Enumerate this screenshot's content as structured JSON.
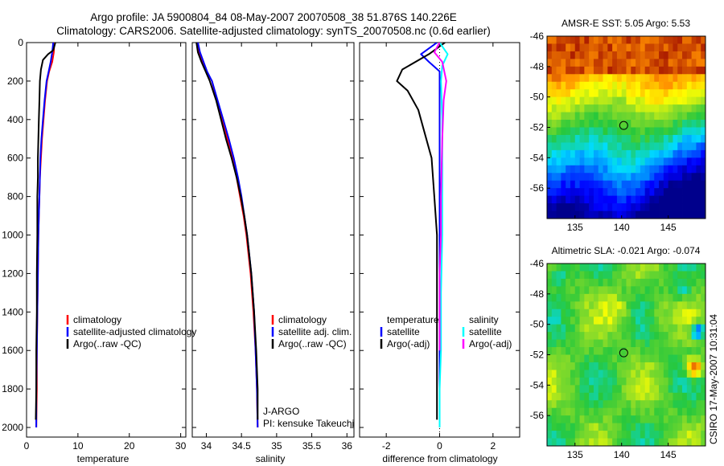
{
  "header": {
    "line1": "Argo profile: JA 5900804_84 08-May-2007 20070508_38 51.876S 140.226E",
    "line2": "Climatology: CARS2006. Satellite-adjusted climatology: synTS_20070508.nc (0.6d earlier)"
  },
  "side_stamp": "CSIRO 17-May-2007 10:31:04",
  "colors": {
    "climatology": "#ff0000",
    "satellite": "#0000ff",
    "argo": "#000000",
    "satellite_salinity": "#00ffff",
    "argo_salinity_adj": "#ff00ff"
  },
  "chart_data": [
    {
      "type": "line",
      "name": "temperature-profile",
      "xlabel": "temperature",
      "xlim": [
        0,
        31
      ],
      "ylim": [
        2050,
        0
      ],
      "x_ticks": [
        0,
        10,
        20,
        30
      ],
      "y_ticks": [
        0,
        200,
        400,
        600,
        800,
        1000,
        1200,
        1400,
        1600,
        1800,
        2000
      ],
      "legend": [
        "climatology",
        "satellite-adjusted climatology",
        "Argo(..raw -QC)"
      ],
      "series": [
        {
          "name": "climatology",
          "color": "#ff0000",
          "points": [
            [
              5.4,
              0
            ],
            [
              5.3,
              50
            ],
            [
              5.0,
              100
            ],
            [
              4.4,
              150
            ],
            [
              4.0,
              200
            ],
            [
              3.6,
              300
            ],
            [
              3.3,
              400
            ],
            [
              3.0,
              500
            ],
            [
              2.8,
              600
            ],
            [
              2.6,
              700
            ],
            [
              2.5,
              800
            ],
            [
              2.4,
              900
            ],
            [
              2.3,
              1000
            ],
            [
              2.2,
              1200
            ],
            [
              2.1,
              1400
            ],
            [
              2.0,
              1600
            ],
            [
              2.0,
              1800
            ],
            [
              1.9,
              2000
            ]
          ]
        },
        {
          "name": "satellite-adjusted climatology",
          "color": "#0000ff",
          "points": [
            [
              5.2,
              0
            ],
            [
              5.0,
              50
            ],
            [
              4.7,
              100
            ],
            [
              4.3,
              150
            ],
            [
              3.9,
              200
            ],
            [
              3.5,
              300
            ],
            [
              3.2,
              400
            ],
            [
              2.9,
              500
            ],
            [
              2.7,
              600
            ],
            [
              2.6,
              700
            ],
            [
              2.5,
              800
            ],
            [
              2.4,
              900
            ],
            [
              2.3,
              1000
            ],
            [
              2.2,
              1200
            ],
            [
              2.1,
              1400
            ],
            [
              2.0,
              1600
            ],
            [
              1.9,
              1800
            ],
            [
              1.9,
              2000
            ]
          ]
        },
        {
          "name": "Argo(..raw -QC)",
          "color": "#000000",
          "points": [
            [
              5.6,
              0
            ],
            [
              5.2,
              40
            ],
            [
              4.2,
              60
            ],
            [
              3.2,
              90
            ],
            [
              2.8,
              140
            ],
            [
              2.6,
              200
            ],
            [
              2.5,
              300
            ],
            [
              2.4,
              400
            ],
            [
              2.3,
              500
            ],
            [
              2.2,
              600
            ],
            [
              2.2,
              700
            ],
            [
              2.1,
              800
            ],
            [
              2.1,
              1000
            ],
            [
              2.0,
              1200
            ],
            [
              2.0,
              1400
            ],
            [
              1.9,
              1600
            ],
            [
              1.9,
              1800
            ],
            [
              1.8,
              1960
            ]
          ]
        }
      ]
    },
    {
      "type": "line",
      "name": "salinity-profile",
      "xlabel": "salinity",
      "xlim": [
        33.8,
        36.1
      ],
      "ylim": [
        2050,
        0
      ],
      "x_ticks": [
        34,
        34.5,
        35,
        35.5,
        36
      ],
      "legend": [
        "climatology",
        "satellite adj. clim.",
        "Argo(..raw -QC)"
      ],
      "annotation": [
        "J-ARGO",
        "PI: kensuke Takeuchi"
      ],
      "series": [
        {
          "name": "climatology",
          "color": "#ff0000",
          "points": [
            [
              33.87,
              0
            ],
            [
              33.9,
              50
            ],
            [
              33.95,
              100
            ],
            [
              34.0,
              150
            ],
            [
              34.08,
              200
            ],
            [
              34.15,
              300
            ],
            [
              34.22,
              400
            ],
            [
              34.3,
              500
            ],
            [
              34.37,
              600
            ],
            [
              34.43,
              700
            ],
            [
              34.48,
              800
            ],
            [
              34.53,
              900
            ],
            [
              34.57,
              1000
            ],
            [
              34.63,
              1200
            ],
            [
              34.67,
              1400
            ],
            [
              34.7,
              1600
            ],
            [
              34.72,
              1800
            ],
            [
              34.73,
              2000
            ]
          ]
        },
        {
          "name": "satellite adj. clim.",
          "color": "#0000ff",
          "points": [
            [
              33.88,
              0
            ],
            [
              33.91,
              50
            ],
            [
              33.96,
              100
            ],
            [
              34.01,
              150
            ],
            [
              34.08,
              200
            ],
            [
              34.16,
              300
            ],
            [
              34.24,
              400
            ],
            [
              34.32,
              500
            ],
            [
              34.39,
              600
            ],
            [
              34.45,
              700
            ],
            [
              34.5,
              800
            ],
            [
              34.54,
              900
            ],
            [
              34.58,
              1000
            ],
            [
              34.64,
              1200
            ],
            [
              34.68,
              1400
            ],
            [
              34.7,
              1600
            ],
            [
              34.72,
              1800
            ],
            [
              34.73,
              2000
            ]
          ]
        },
        {
          "name": "Argo(..raw -QC)",
          "color": "#000000",
          "points": [
            [
              33.86,
              0
            ],
            [
              33.88,
              50
            ],
            [
              33.93,
              100
            ],
            [
              33.99,
              150
            ],
            [
              34.05,
              200
            ],
            [
              34.14,
              300
            ],
            [
              34.21,
              400
            ],
            [
              34.28,
              500
            ],
            [
              34.36,
              600
            ],
            [
              34.43,
              700
            ],
            [
              34.49,
              800
            ],
            [
              34.54,
              900
            ],
            [
              34.58,
              1000
            ],
            [
              34.64,
              1200
            ],
            [
              34.68,
              1400
            ],
            [
              34.71,
              1600
            ],
            [
              34.73,
              1800
            ],
            [
              34.73,
              1960
            ]
          ]
        }
      ]
    },
    {
      "type": "line",
      "name": "difference-profile",
      "xlabel": "difference from climatology",
      "xlim": [
        -3,
        3
      ],
      "ylim": [
        2050,
        0
      ],
      "x_ticks": [
        -2,
        0,
        2
      ],
      "legend": [
        "temperature",
        "satellite",
        "Argo(-adj)",
        "salinity",
        "satellite",
        "Argo(-adj)"
      ],
      "series": [
        {
          "name": "temperature satellite",
          "color": "#0000ff",
          "points": [
            [
              -0.1,
              0
            ],
            [
              -0.7,
              60
            ],
            [
              -0.4,
              100
            ],
            [
              0.0,
              150
            ],
            [
              0.0,
              300
            ],
            [
              0.0,
              600
            ],
            [
              0.0,
              900
            ],
            [
              0.0,
              1200
            ],
            [
              0.0,
              1500
            ],
            [
              0.0,
              1800
            ],
            [
              0.0,
              2000
            ]
          ]
        },
        {
          "name": "temperature Argo(-adj)",
          "color": "#000000",
          "points": [
            [
              0.2,
              0
            ],
            [
              -0.4,
              60
            ],
            [
              -1.4,
              140
            ],
            [
              -1.6,
              200
            ],
            [
              -1.2,
              250
            ],
            [
              -0.8,
              350
            ],
            [
              -0.6,
              450
            ],
            [
              -0.3,
              600
            ],
            [
              -0.2,
              800
            ],
            [
              -0.1,
              1000
            ],
            [
              -0.1,
              1300
            ],
            [
              -0.1,
              1600
            ],
            [
              -0.1,
              1960
            ]
          ]
        },
        {
          "name": "salinity satellite",
          "color": "#00ffff",
          "points": [
            [
              0.0,
              0
            ],
            [
              0.3,
              60
            ],
            [
              0.1,
              120
            ],
            [
              0.05,
              200
            ],
            [
              0.1,
              400
            ],
            [
              0.1,
              600
            ],
            [
              0.1,
              800
            ],
            [
              0.1,
              1000
            ],
            [
              0.05,
              1300
            ],
            [
              0.05,
              1600
            ],
            [
              0.0,
              1800
            ],
            [
              0.0,
              2000
            ]
          ]
        },
        {
          "name": "salinity Argo(-adj)",
          "color": "#ff00ff",
          "points": [
            [
              0.0,
              0
            ],
            [
              -0.2,
              50
            ],
            [
              0.1,
              100
            ],
            [
              0.25,
              200
            ],
            [
              0.15,
              300
            ],
            [
              0.1,
              500
            ],
            [
              0.05,
              800
            ],
            [
              0.05,
              1000
            ],
            [
              0.0,
              1200
            ],
            [
              0.0,
              1400
            ],
            [
              0.0,
              1600
            ]
          ]
        }
      ]
    },
    {
      "type": "heatmap",
      "name": "amsr-e-sst-map",
      "title": "AMSR-E SST: 5.05 Argo: 5.53",
      "xlim": [
        132,
        149
      ],
      "ylim": [
        -58,
        -46
      ],
      "x_ticks": [
        135,
        140,
        145
      ],
      "y_ticks": [
        -46,
        -48,
        -50,
        -52,
        -54,
        -56
      ],
      "marker": {
        "lon": 140.226,
        "lat": -51.876
      }
    },
    {
      "type": "heatmap",
      "name": "altimetric-sla-map",
      "title": "Altimetric SLA: -0.021 Argo: -0.074",
      "xlim": [
        132,
        149
      ],
      "ylim": [
        -58,
        -46
      ],
      "x_ticks": [
        135,
        140,
        145
      ],
      "y_ticks": [
        -46,
        -48,
        -50,
        -52,
        -54,
        -56
      ],
      "marker": {
        "lon": 140.226,
        "lat": -51.876
      }
    }
  ]
}
